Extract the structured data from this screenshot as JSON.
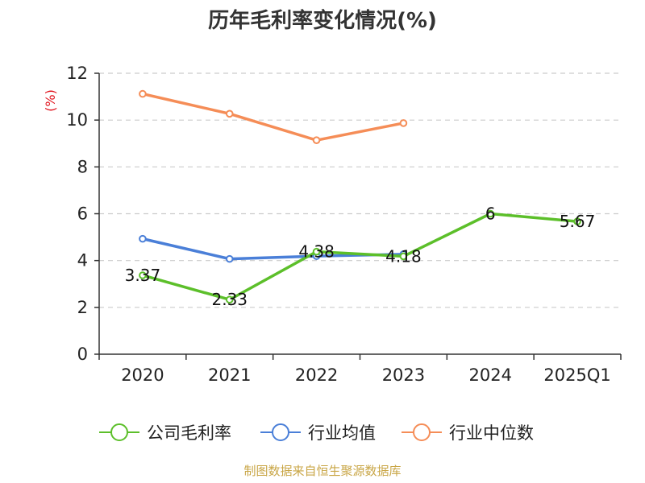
{
  "chart_data": {
    "type": "line",
    "title": "历年毛利率变化情况(%)",
    "ylabel": "(%)",
    "categories": [
      "2020",
      "2021",
      "2022",
      "2023",
      "2024",
      "2025Q1"
    ],
    "y_ticks": [
      "0",
      "2",
      "4",
      "6",
      "8",
      "10",
      "12"
    ],
    "ylim": [
      0,
      12
    ],
    "grid": "horizontal-dashed",
    "legend_position": "bottom",
    "series": [
      {
        "name": "公司毛利率",
        "color": "#5cbf2a",
        "values": [
          3.37,
          2.33,
          4.38,
          4.18,
          6,
          5.67
        ],
        "labels": [
          "3.37",
          "2.33",
          "4.38",
          "4.18",
          "6",
          "5.67"
        ]
      },
      {
        "name": "行业均值",
        "color": "#4a7fd8",
        "values": [
          4.93,
          4.07,
          4.19,
          4.27,
          null,
          null
        ]
      },
      {
        "name": "行业中位数",
        "color": "#f58d57",
        "values": [
          11.12,
          10.27,
          9.14,
          9.87,
          null,
          null
        ]
      }
    ]
  },
  "source": "制图数据来自恒生聚源数据库",
  "colors": {
    "axis": "#333333",
    "grid": "#cccccc",
    "ylabel": "#e0141e",
    "source": "#c9a646"
  }
}
